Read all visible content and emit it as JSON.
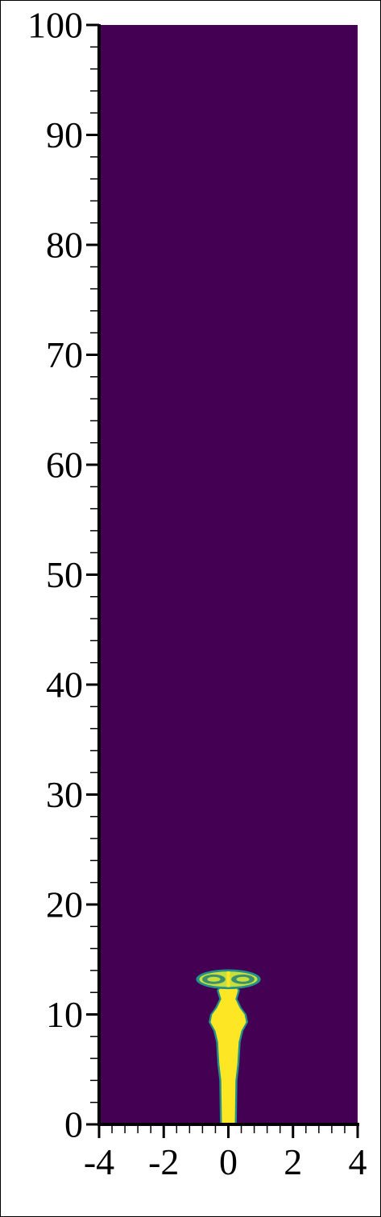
{
  "chart_data": {
    "type": "heatmap",
    "title": "",
    "xlabel": "",
    "ylabel": "",
    "xlim": [
      -4,
      4
    ],
    "ylim": [
      0,
      100
    ],
    "x_ticks": [
      -4,
      -2,
      0,
      2,
      4
    ],
    "x_tick_labels": [
      "-4",
      "-2",
      "0",
      "2",
      "4"
    ],
    "y_ticks": [
      0,
      10,
      20,
      30,
      40,
      50,
      60,
      70,
      80,
      90,
      100
    ],
    "y_tick_labels": [
      "0",
      "10",
      "20",
      "30",
      "40",
      "50",
      "60",
      "70",
      "80",
      "90",
      "100"
    ],
    "x_minor_step": 0.4,
    "y_minor_step": 2,
    "colormap": "viridis",
    "colors": {
      "background_field": "#440154",
      "jet_core": "#fde725",
      "jet_edge": "#21918c",
      "cap_mid": "#3b8f6e",
      "cap_light": "#c8de3a"
    },
    "grid": false,
    "legend": "none",
    "features": [
      {
        "name": "jet-stem",
        "value": "high",
        "profile": [
          {
            "y": 0.0,
            "half_width": 0.2
          },
          {
            "y": 4.0,
            "half_width": 0.22
          },
          {
            "y": 5.5,
            "half_width": 0.28
          },
          {
            "y": 7.5,
            "half_width": 0.32
          },
          {
            "y": 8.5,
            "half_width": 0.4
          },
          {
            "y": 9.3,
            "half_width": 0.55
          },
          {
            "y": 10.0,
            "half_width": 0.5
          },
          {
            "y": 10.6,
            "half_width": 0.35
          },
          {
            "y": 11.4,
            "half_width": 0.22
          },
          {
            "y": 12.2,
            "half_width": 0.3
          },
          {
            "y": 12.6,
            "half_width": 0.18
          }
        ]
      },
      {
        "name": "mushroom-cap",
        "value": "medium",
        "center_x": 0.0,
        "center_y": 13.2,
        "half_width": 1.0,
        "half_height": 0.9
      }
    ]
  }
}
